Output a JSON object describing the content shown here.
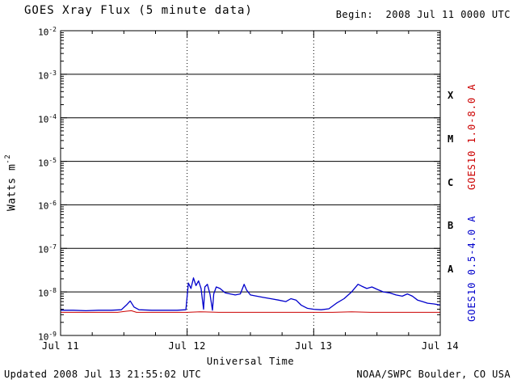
{
  "header": {
    "begin_label": "Begin:  2008 Jul 11 0000 UTC"
  },
  "footer": {
    "updated": "Updated 2008 Jul 13 21:55:02 UTC",
    "source": "NOAA/SWPC Boulder, CO USA"
  },
  "colors": {
    "background": "#ffffff",
    "axis": "#000000",
    "long_channel": "#cc0000",
    "short_channel": "#0000cc"
  },
  "chart_data": {
    "type": "line",
    "title": "GOES Xray Flux (5 minute data)",
    "xlabel": "Universal Time",
    "ylabel": {
      "text": "Watts m",
      "sup": "-2"
    },
    "x_axis": {
      "range_days": [
        0,
        3
      ],
      "tick_days": [
        0,
        1,
        2,
        3
      ],
      "tick_labels": [
        "Jul 11",
        "Jul 12",
        "Jul 13",
        "Jul 14"
      ],
      "minor_step_days": 0.25
    },
    "y_axis": {
      "log_range": [
        -9,
        -2
      ],
      "tick_exponents": [
        "-2",
        "-3",
        "-4",
        "-5",
        "-6",
        "-7",
        "-8",
        "-9"
      ]
    },
    "grid": {
      "h_lines_exponents": [
        -3,
        -4,
        -5,
        -6,
        -7,
        -8
      ],
      "v_dotted_days": [
        1,
        2
      ]
    },
    "flare_classes": [
      {
        "label": "X",
        "center_exp": -3.5
      },
      {
        "label": "M",
        "center_exp": -4.5
      },
      {
        "label": "C",
        "center_exp": -5.5
      },
      {
        "label": "B",
        "center_exp": -6.5
      },
      {
        "label": "A",
        "center_exp": -7.5
      }
    ],
    "series": [
      {
        "name": "GOES10 1.0-8.0 A",
        "color": "#cc0000",
        "points": [
          [
            0.0,
            3.4e-09
          ],
          [
            0.15,
            3.4e-09
          ],
          [
            0.3,
            3.4e-09
          ],
          [
            0.45,
            3.4e-09
          ],
          [
            0.52,
            3.6e-09
          ],
          [
            0.56,
            3.7e-09
          ],
          [
            0.6,
            3.4e-09
          ],
          [
            0.75,
            3.4e-09
          ],
          [
            0.9,
            3.4e-09
          ],
          [
            1.0,
            3.4e-09
          ],
          [
            1.1,
            3.5e-09
          ],
          [
            1.25,
            3.4e-09
          ],
          [
            1.4,
            3.4e-09
          ],
          [
            1.55,
            3.4e-09
          ],
          [
            1.7,
            3.4e-09
          ],
          [
            1.85,
            3.4e-09
          ],
          [
            2.0,
            3.4e-09
          ],
          [
            2.15,
            3.4e-09
          ],
          [
            2.3,
            3.5e-09
          ],
          [
            2.45,
            3.4e-09
          ],
          [
            2.6,
            3.4e-09
          ],
          [
            2.75,
            3.4e-09
          ],
          [
            2.9,
            3.4e-09
          ],
          [
            3.0,
            3.4e-09
          ]
        ]
      },
      {
        "name": "GOES10 0.5-4.0 A",
        "color": "#0000cc",
        "points": [
          [
            0.0,
            3.8e-09
          ],
          [
            0.1,
            3.8e-09
          ],
          [
            0.2,
            3.7e-09
          ],
          [
            0.3,
            3.8e-09
          ],
          [
            0.4,
            3.8e-09
          ],
          [
            0.48,
            3.9e-09
          ],
          [
            0.52,
            5e-09
          ],
          [
            0.55,
            6.2e-09
          ],
          [
            0.58,
            4.5e-09
          ],
          [
            0.62,
            3.9e-09
          ],
          [
            0.72,
            3.8e-09
          ],
          [
            0.82,
            3.8e-09
          ],
          [
            0.92,
            3.8e-09
          ],
          [
            0.99,
            3.9e-09
          ],
          [
            1.0,
            8e-09
          ],
          [
            1.01,
            1.6e-08
          ],
          [
            1.03,
            1.2e-08
          ],
          [
            1.05,
            2.1e-08
          ],
          [
            1.07,
            1.4e-08
          ],
          [
            1.09,
            1.8e-08
          ],
          [
            1.11,
            1.2e-08
          ],
          [
            1.13,
            4e-09
          ],
          [
            1.14,
            1.3e-08
          ],
          [
            1.16,
            1.5e-08
          ],
          [
            1.18,
            9e-09
          ],
          [
            1.2,
            3.8e-09
          ],
          [
            1.21,
            9e-09
          ],
          [
            1.23,
            1.3e-08
          ],
          [
            1.26,
            1.2e-08
          ],
          [
            1.3,
            9.5e-09
          ],
          [
            1.34,
            9e-09
          ],
          [
            1.38,
            8.5e-09
          ],
          [
            1.42,
            9e-09
          ],
          [
            1.45,
            1.5e-08
          ],
          [
            1.47,
            1.1e-08
          ],
          [
            1.5,
            8.5e-09
          ],
          [
            1.55,
            8e-09
          ],
          [
            1.6,
            7.5e-09
          ],
          [
            1.66,
            7e-09
          ],
          [
            1.72,
            6.5e-09
          ],
          [
            1.78,
            6e-09
          ],
          [
            1.82,
            7e-09
          ],
          [
            1.86,
            6.5e-09
          ],
          [
            1.9,
            5e-09
          ],
          [
            1.95,
            4.2e-09
          ],
          [
            2.0,
            4e-09
          ],
          [
            2.06,
            3.9e-09
          ],
          [
            2.12,
            4.1e-09
          ],
          [
            2.18,
            5.5e-09
          ],
          [
            2.24,
            7e-09
          ],
          [
            2.3,
            1e-08
          ],
          [
            2.35,
            1.5e-08
          ],
          [
            2.38,
            1.35e-08
          ],
          [
            2.42,
            1.2e-08
          ],
          [
            2.46,
            1.3e-08
          ],
          [
            2.5,
            1.15e-08
          ],
          [
            2.55,
            1e-08
          ],
          [
            2.6,
            9.5e-09
          ],
          [
            2.65,
            8.5e-09
          ],
          [
            2.7,
            8e-09
          ],
          [
            2.74,
            9e-09
          ],
          [
            2.78,
            8e-09
          ],
          [
            2.82,
            6.5e-09
          ],
          [
            2.86,
            6e-09
          ],
          [
            2.9,
            5.5e-09
          ],
          [
            2.95,
            5.3e-09
          ],
          [
            3.0,
            5e-09
          ]
        ]
      }
    ]
  }
}
